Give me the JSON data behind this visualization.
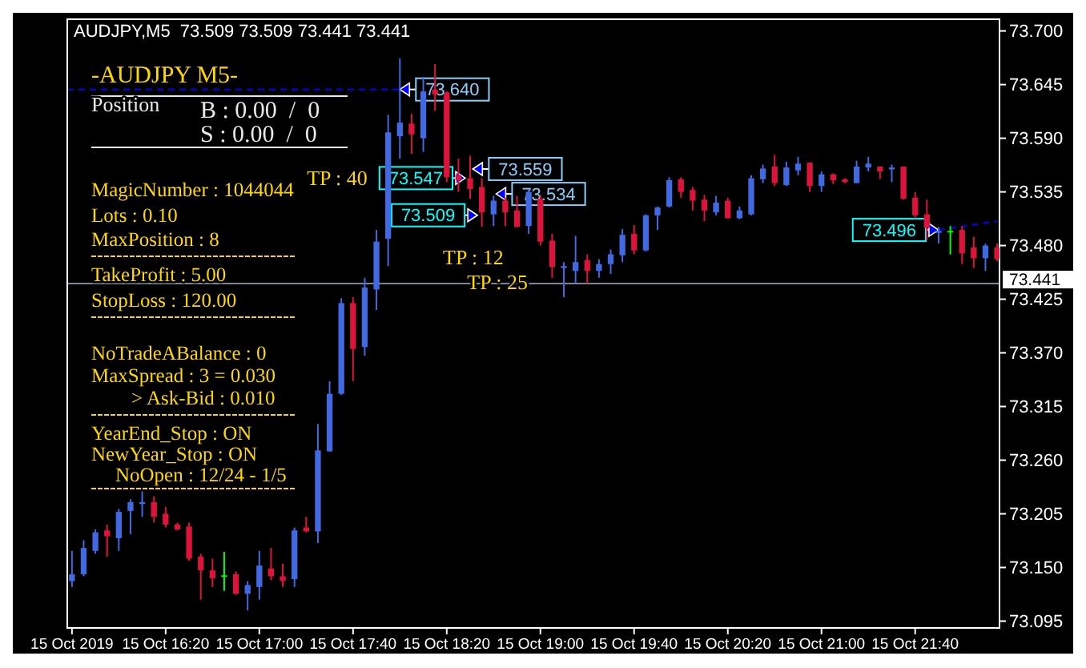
{
  "chart_data": {
    "type": "candlestick",
    "title": "AUDJPY,M5  73.509 73.509 73.441 73.441",
    "x": [
      "2019-10-15T15:40",
      "2019-10-15T15:45",
      "2019-10-15T15:50",
      "2019-10-15T15:55",
      "2019-10-15T16:00",
      "2019-10-15T16:05",
      "2019-10-15T16:10",
      "2019-10-15T16:15",
      "2019-10-15T16:20",
      "2019-10-15T16:25",
      "2019-10-15T16:30",
      "2019-10-15T16:35",
      "2019-10-15T16:40",
      "2019-10-15T16:45",
      "2019-10-15T16:50",
      "2019-10-15T16:55",
      "2019-10-15T17:00",
      "2019-10-15T17:05",
      "2019-10-15T17:10",
      "2019-10-15T17:15",
      "2019-10-15T17:20",
      "2019-10-15T17:25",
      "2019-10-15T17:30",
      "2019-10-15T17:35",
      "2019-10-15T17:40",
      "2019-10-15T17:45",
      "2019-10-15T17:50",
      "2019-10-15T17:55",
      "2019-10-15T18:00",
      "2019-10-15T18:05",
      "2019-10-15T18:10",
      "2019-10-15T18:15",
      "2019-10-15T18:20",
      "2019-10-15T18:25",
      "2019-10-15T18:30",
      "2019-10-15T18:35",
      "2019-10-15T18:40",
      "2019-10-15T18:45",
      "2019-10-15T18:50",
      "2019-10-15T18:55",
      "2019-10-15T19:00",
      "2019-10-15T19:05",
      "2019-10-15T19:10",
      "2019-10-15T19:15",
      "2019-10-15T19:20",
      "2019-10-15T19:25",
      "2019-10-15T19:30",
      "2019-10-15T19:35",
      "2019-10-15T19:40",
      "2019-10-15T19:45",
      "2019-10-15T19:50",
      "2019-10-15T19:55",
      "2019-10-15T20:00",
      "2019-10-15T20:05",
      "2019-10-15T20:10",
      "2019-10-15T20:15",
      "2019-10-15T20:20",
      "2019-10-15T20:25",
      "2019-10-15T20:30",
      "2019-10-15T20:35",
      "2019-10-15T20:40",
      "2019-10-15T20:45",
      "2019-10-15T20:50",
      "2019-10-15T20:55",
      "2019-10-15T21:00",
      "2019-10-15T21:05",
      "2019-10-15T21:10",
      "2019-10-15T21:15",
      "2019-10-15T21:20",
      "2019-10-15T21:25",
      "2019-10-15T21:30",
      "2019-10-15T21:35",
      "2019-10-15T21:40",
      "2019-10-15T21:45",
      "2019-10-15T21:50",
      "2019-10-15T21:55",
      "2019-10-15T22:00",
      "2019-10-15T22:05",
      "2019-10-15T22:10",
      "2019-10-15T22:15"
    ],
    "ohlc": [
      [
        73.136,
        73.167,
        73.13,
        73.143
      ],
      [
        73.143,
        73.178,
        73.141,
        73.17
      ],
      [
        73.167,
        73.189,
        73.164,
        73.186
      ],
      [
        73.188,
        73.194,
        73.161,
        73.182
      ],
      [
        73.18,
        73.21,
        73.167,
        73.207
      ],
      [
        73.208,
        73.22,
        73.184,
        73.217
      ],
      [
        73.215,
        73.228,
        73.202,
        73.217
      ],
      [
        73.217,
        73.223,
        73.196,
        73.202
      ],
      [
        73.205,
        73.212,
        73.191,
        73.194
      ],
      [
        73.194,
        73.196,
        73.188,
        73.189
      ],
      [
        73.192,
        73.196,
        73.157,
        73.159
      ],
      [
        73.161,
        73.164,
        73.117,
        73.147
      ],
      [
        73.147,
        73.159,
        73.13,
        73.139
      ],
      [
        73.142,
        73.166,
        73.126,
        73.142
      ],
      [
        73.143,
        73.146,
        73.122,
        73.123
      ],
      [
        73.123,
        73.136,
        73.106,
        73.132
      ],
      [
        73.13,
        73.167,
        73.117,
        73.152
      ],
      [
        73.149,
        73.17,
        73.137,
        73.141
      ],
      [
        73.141,
        73.154,
        73.13,
        73.136
      ],
      [
        73.138,
        73.191,
        73.13,
        73.188
      ],
      [
        73.191,
        73.202,
        73.186,
        73.187
      ],
      [
        73.187,
        73.297,
        73.175,
        73.27
      ],
      [
        73.269,
        73.341,
        73.269,
        73.328
      ],
      [
        73.328,
        73.426,
        73.327,
        73.421
      ],
      [
        73.421,
        73.427,
        73.341,
        73.374
      ],
      [
        73.376,
        73.447,
        73.367,
        73.437
      ],
      [
        73.435,
        73.496,
        73.414,
        73.484
      ],
      [
        73.487,
        73.614,
        73.459,
        73.596
      ],
      [
        73.592,
        73.672,
        73.569,
        73.606
      ],
      [
        73.605,
        73.615,
        73.574,
        73.594
      ],
      [
        73.59,
        73.653,
        73.576,
        73.638
      ],
      [
        73.64,
        73.666,
        73.618,
        73.635
      ],
      [
        73.637,
        73.638,
        73.545,
        73.55
      ],
      [
        73.552,
        73.569,
        73.535,
        73.547
      ],
      [
        73.549,
        73.572,
        73.528,
        73.538
      ],
      [
        73.54,
        73.549,
        73.499,
        73.514
      ],
      [
        73.512,
        73.531,
        73.5,
        73.526
      ],
      [
        73.526,
        73.529,
        73.5,
        73.514
      ],
      [
        73.516,
        73.531,
        73.499,
        73.499
      ],
      [
        73.5,
        73.538,
        73.492,
        73.535
      ],
      [
        73.528,
        73.532,
        73.48,
        73.484
      ],
      [
        73.485,
        73.492,
        73.447,
        73.458
      ],
      [
        73.457,
        73.463,
        73.427,
        73.459
      ],
      [
        73.454,
        73.49,
        73.441,
        73.463
      ],
      [
        73.465,
        73.471,
        73.441,
        73.454
      ],
      [
        73.454,
        73.466,
        73.447,
        73.461
      ],
      [
        73.461,
        73.476,
        73.451,
        73.471
      ],
      [
        73.47,
        73.497,
        73.463,
        73.491
      ],
      [
        73.492,
        73.501,
        73.471,
        73.475
      ],
      [
        73.475,
        73.512,
        73.474,
        73.511
      ],
      [
        73.511,
        73.52,
        73.496,
        73.519
      ],
      [
        73.52,
        73.55,
        73.519,
        73.547
      ],
      [
        73.548,
        73.55,
        73.529,
        73.535
      ],
      [
        73.537,
        73.54,
        73.516,
        73.526
      ],
      [
        73.527,
        73.532,
        73.505,
        73.516
      ],
      [
        73.514,
        73.531,
        73.511,
        73.524
      ],
      [
        73.526,
        73.529,
        73.508,
        73.508
      ],
      [
        73.508,
        73.52,
        73.507,
        73.516
      ],
      [
        73.512,
        73.552,
        73.511,
        73.549
      ],
      [
        73.548,
        73.563,
        73.544,
        73.559
      ],
      [
        73.561,
        73.573,
        73.541,
        73.544
      ],
      [
        73.542,
        73.566,
        73.541,
        73.56
      ],
      [
        73.557,
        73.571,
        73.552,
        73.564
      ],
      [
        73.565,
        73.565,
        73.535,
        73.541
      ],
      [
        73.541,
        73.556,
        73.535,
        73.553
      ],
      [
        73.553,
        73.554,
        73.543,
        73.547
      ],
      [
        73.548,
        73.549,
        73.544,
        73.545
      ],
      [
        73.544,
        73.567,
        73.544,
        73.561
      ],
      [
        73.56,
        73.571,
        73.556,
        73.564
      ],
      [
        73.561,
        73.561,
        73.548,
        73.556
      ],
      [
        73.558,
        73.563,
        73.545,
        73.56
      ],
      [
        73.561,
        73.561,
        73.527,
        73.528
      ],
      [
        73.529,
        73.535,
        73.508,
        73.511
      ],
      [
        73.512,
        73.527,
        73.486,
        73.498
      ],
      [
        73.493,
        73.499,
        73.482,
        73.495
      ],
      [
        73.495,
        73.5,
        73.471,
        73.495
      ],
      [
        73.496,
        73.5,
        73.461,
        73.472
      ],
      [
        73.478,
        73.489,
        73.457,
        73.467
      ],
      [
        73.467,
        73.482,
        73.454,
        73.48
      ],
      [
        73.478,
        73.482,
        73.464,
        73.466
      ]
    ],
    "colors": [
      "#4169e1",
      "#4169e1",
      "#4169e1",
      "#dc143c",
      "#4169e1",
      "#4169e1",
      "#4169e1",
      "#dc143c",
      "#dc143c",
      "#dc143c",
      "#dc143c",
      "#dc143c",
      "#dc143c",
      "#00ff00",
      "#dc143c",
      "#4169e1",
      "#4169e1",
      "#dc143c",
      "#dc143c",
      "#4169e1",
      "#dc143c",
      "#4169e1",
      "#4169e1",
      "#4169e1",
      "#dc143c",
      "#4169e1",
      "#4169e1",
      "#4169e1",
      "#4169e1",
      "#dc143c",
      "#4169e1",
      "#dc143c",
      "#dc143c",
      "#dc143c",
      "#dc143c",
      "#dc143c",
      "#4169e1",
      "#dc143c",
      "#dc143c",
      "#4169e1",
      "#dc143c",
      "#dc143c",
      "#4169e1",
      "#4169e1",
      "#dc143c",
      "#4169e1",
      "#4169e1",
      "#4169e1",
      "#dc143c",
      "#4169e1",
      "#4169e1",
      "#4169e1",
      "#dc143c",
      "#dc143c",
      "#dc143c",
      "#4169e1",
      "#dc143c",
      "#4169e1",
      "#4169e1",
      "#4169e1",
      "#dc143c",
      "#4169e1",
      "#4169e1",
      "#dc143c",
      "#4169e1",
      "#dc143c",
      "#dc143c",
      "#4169e1",
      "#4169e1",
      "#dc143c",
      "#4169e1",
      "#dc143c",
      "#dc143c",
      "#dc143c",
      "#4169e1",
      "#00ff00",
      "#dc143c",
      "#dc143c",
      "#4169e1",
      "#dc143c"
    ],
    "series": [
      {
        "type": "line",
        "x": [
          "2019-10-15T15:38",
          "2019-10-15T18:00"
        ],
        "values": [
          73.64,
          73.64
        ],
        "color": "#0000ff",
        "line_style": "dashed"
      },
      {
        "type": "line",
        "x": [
          "2019-10-15T21:50",
          "2019-10-15T22:15"
        ],
        "values": [
          73.496,
          73.505
        ],
        "color": "#0000ff",
        "line_style": "dashed"
      }
    ],
    "xlim": [
      "2019-10-15T15:38",
      "2019-10-15T22:16"
    ],
    "xticks": [
      {
        "value": "2019-10-15T15:40",
        "label": "15 Oct 2019"
      },
      {
        "value": "2019-10-15T16:20",
        "label": "15 Oct 16:20"
      },
      {
        "value": "2019-10-15T17:00",
        "label": "15 Oct 17:00"
      },
      {
        "value": "2019-10-15T17:40",
        "label": "15 Oct 17:40"
      },
      {
        "value": "2019-10-15T18:20",
        "label": "15 Oct 18:20"
      },
      {
        "value": "2019-10-15T19:00",
        "label": "15 Oct 19:00"
      },
      {
        "value": "2019-10-15T19:40",
        "label": "15 Oct 19:40"
      },
      {
        "value": "2019-10-15T20:20",
        "label": "15 Oct 20:20"
      },
      {
        "value": "2019-10-15T21:00",
        "label": "15 Oct 21:00"
      },
      {
        "value": "2019-10-15T21:40",
        "label": "15 Oct 21:40"
      }
    ],
    "ylim": [
      73.088,
      73.712
    ],
    "yticks": [
      {
        "value": 73.7,
        "label": "73.700"
      },
      73.645,
      {
        "value": 73.59,
        "label": "73.590"
      },
      73.535,
      {
        "value": 73.48,
        "label": "73.480"
      },
      73.425,
      {
        "value": 73.37,
        "label": "73.370"
      },
      73.315,
      {
        "value": 73.26,
        "label": "73.260"
      },
      73.205,
      {
        "value": 73.15,
        "label": "73.150"
      },
      73.095
    ],
    "ref_lines": [
      {
        "axis": "y",
        "value": 73.441,
        "label": "73.441",
        "color": "#778899"
      }
    ],
    "annotations": [
      "-AUDJPY M5-",
      "Position",
      "B : 0.00  /  0",
      "S : 0.00  /  0",
      "MagicNumber : 1044044",
      "Lots : 0.10",
      "MaxPosition : 8",
      "TakeProfit : 5.00",
      "StopLoss : 120.00",
      "NoTradeABalance : 0",
      "MaxSpread : 3 = 0.030",
      "> Ask-Bid : 0.010",
      "YearEnd_Stop : ON",
      "NewYear_Stop : ON",
      "NoOpen : 12/24 - 1/5",
      "TP : 40",
      "TP : 12",
      "TP : 25",
      {
        "text": "73.640",
        "x": "2019-10-15T18:00",
        "y": 73.64
      },
      "73.559",
      "73.534",
      "73.547",
      "73.509",
      {
        "text": "73.496",
        "x": "2019-10-15T21:50",
        "y": 73.496
      }
    ]
  }
}
